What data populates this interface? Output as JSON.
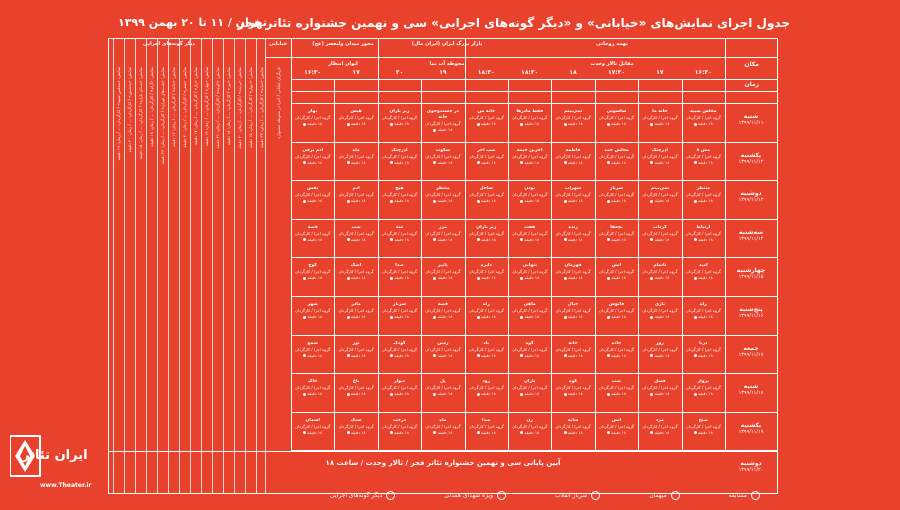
{
  "header": {
    "title": "جدول اجرای نمایش‌های «خیابانی» و «دیگر گونه‌های اجرایی» سی و نهمین جشنواره تئاتر فجر",
    "date": "تهران / ۱۱ تا ۲۰ بهمن ۱۳۹۹"
  },
  "labels": {
    "place": "مکان",
    "time": "زمان"
  },
  "groups": {
    "main": "بهمه روحانی",
    "bazaar": "بازار بزرگ ایران (ایران مال)",
    "maydan": "محور میدان ولیعصر (عج)",
    "street": "خیابانی",
    "other": "دیگر گونه‌های اجرایی"
  },
  "subgroups": {
    "vahdat": "مقابل تالار وحدت",
    "mahvateh": "محوطه آب نما",
    "entezar": "ایوان انتظار"
  },
  "times": [
    "۱۶:۳۰",
    "۱۷",
    "۱۷:۳۰",
    "۱۸",
    "۱۸:۳۰",
    "۱۸:۳۰",
    "۱۹",
    "۲۰",
    "۱۷",
    "۱۶:۳۰"
  ],
  "days": [
    {
      "name": "شنبه",
      "date": "۱۳۹۹/۱۱/۱۱"
    },
    {
      "name": "یکشنبه",
      "date": "۱۳۹۹/۱۱/۱۲"
    },
    {
      "name": "دوشنبه",
      "date": "۱۳۹۹/۱۱/۱۳"
    },
    {
      "name": "سه‌شنبه",
      "date": "۱۳۹۹/۱۱/۱۴"
    },
    {
      "name": "چهارشنبه",
      "date": "۱۳۹۹/۱۱/۱۵"
    },
    {
      "name": "پنج‌شنبه",
      "date": "۱۳۹۹/۱۱/۱۶"
    },
    {
      "name": "جمعه",
      "date": "۱۳۹۹/۱۱/۱۷"
    },
    {
      "name": "شنبه",
      "date": "۱۳۹۹/۱۱/۱۸"
    },
    {
      "name": "یکشنبه",
      "date": "۱۳۹۹/۱۱/۱۹"
    },
    {
      "name": "دوشنبه",
      "date": "۱۳۹۹/۱۱/۲۰"
    }
  ],
  "cells": [
    [
      "مجلس شبیه",
      "خانه ما",
      "ساسونی",
      "نمی‌بینم",
      "فقط مادرها",
      "خانه من",
      "در جست‌وجوی خانه",
      "زیر باران",
      "هیس",
      "بهار"
    ],
    [
      "مس ۸",
      "آذرچنگ",
      "مجلس حمد",
      "فاطمه",
      "آخرین خیمه",
      "شب آخر",
      "سکوت",
      "آذرچنگ",
      "ماه",
      "آدم برفی"
    ],
    [
      "منتظر",
      "نمی‌بینم",
      "سرباز",
      "سهراب",
      "بودن",
      "ساحل",
      "منتظر",
      "هیچ",
      "آدم",
      "نقش"
    ],
    [
      "ارتباط",
      "گرداب",
      "بچه‌ها",
      "زنده",
      "هفت",
      "زیر باران",
      "مرز",
      "سه",
      "شب",
      "قصه"
    ],
    [
      "امید",
      "ناتمام",
      "آتش",
      "قهرمان",
      "تنهایی",
      "دایره",
      "پاییز",
      "صدا",
      "اشک",
      "کوچ"
    ],
    [
      "راه",
      "بازی",
      "فانوس",
      "خیال",
      "ماهی",
      "راه",
      "قصه",
      "سرباز",
      "مادر",
      "شهر"
    ],
    [
      "دریا",
      "روز",
      "جاده",
      "خانه",
      "کوه",
      "باد",
      "زمین",
      "کودک",
      "نور",
      "شمع"
    ],
    [
      "پرواز",
      "فصل",
      "شب",
      "کوه",
      "باران",
      "رود",
      "پل",
      "دیوار",
      "باغ",
      "خاک"
    ],
    [
      "صبح",
      "مرد",
      "آتش",
      "سایه",
      "زن",
      "صدا",
      "ماه",
      "درخت",
      "سنگ",
      "آسمان"
    ]
  ],
  "cell_detail": "گروه اجرا / کارگردان",
  "cell_time": "۱۸ دقیقه",
  "side_texts": [
    "نمایش: «مجلس شبیه» / کارگردان: ... / زمان: ۱۹ دقیقه",
    "نمایش: «بخشش» / کارگردان: ... / زمان: ۲۰ دقیقه",
    "نمایش: «صدای باران» / کارگردان: ... / زمان: ۱۵ دقیقه",
    "نمایش: «آرام» / کارگردان: ... / زمان: ۱۸ دقیقه",
    "نمایش: «شب‌های تهران» / کارگردان: ... / زمان: ۲۲ دقیقه",
    "نمایش: «خانه» / کارگردان: ... / زمان: ۱۶ دقیقه",
    "نمایش: «سفر» / کارگردان: ... / زمان: ۲۰ دقیقه",
    "نمایش: «راز» / کارگردان: ... / زمان: ۱۷ دقیقه",
    "نمایش: «بهار» / کارگردان: ... / زمان: ۱۹ دقیقه",
    "نمایش: «کوچه» / کارگردان: ... / زمان: ۲۱ دقیقه",
    "نمایش: «نور» / کارگردان: ... / زمان: ۱۸ دقیقه",
    "نمایش: «پرنده» / کارگردان: ... / زمان: ۲۰ دقیقه",
    "نمایش: «دیوار» / کارگردان: ... / زمان: ۱۵ دقیقه",
    "نمایش: «سایه» / کارگردان: ... / زمان: ۲۳ دقیقه"
  ],
  "street_text": "بازیگران خیابانی / اجرا در محوطه جشنواره",
  "footer": "آیین پایانی سی و نهمین جشنواره تئاتر فجر / تالار وحدت / ساعت ۱۸",
  "legend": [
    "مسابقه",
    "میهمان",
    "سرباز انقلاب",
    "ویژه شهدای همدلی",
    "دیگر گونه‌های اجرایی"
  ],
  "logo": {
    "text": "ایران تئاتر",
    "url": "www.Theater.ir"
  },
  "colors": {
    "background": "#e8412c",
    "foreground": "#ffffff"
  }
}
